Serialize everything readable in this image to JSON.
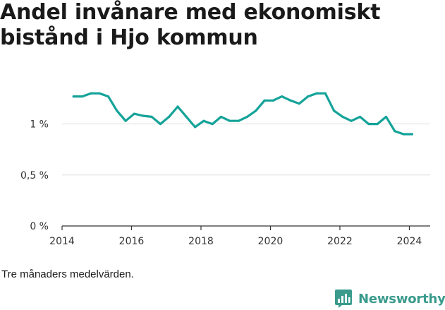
{
  "header": {
    "title": "Andel invånare med ekonomiskt bistånd i Hjo kommun"
  },
  "caption": "Tre månaders medelvärden.",
  "brand": {
    "name": "Newsworthy",
    "color": "#3a9b8d"
  },
  "colors": {
    "line": "#14a399",
    "grid": "#dddddd",
    "axis": "#333333"
  },
  "chart_data": {
    "type": "line",
    "title": "Andel invånare med ekonomiskt bistånd i Hjo kommun",
    "xlabel": "",
    "ylabel": "",
    "xlim": [
      2014,
      2024.6
    ],
    "ylim": [
      0,
      1.35
    ],
    "x_ticks": [
      {
        "value": 2014,
        "label": "2014"
      },
      {
        "value": 2016,
        "label": "2016"
      },
      {
        "value": 2018,
        "label": "2018"
      },
      {
        "value": 2020,
        "label": "2020"
      },
      {
        "value": 2022,
        "label": "2022"
      },
      {
        "value": 2024,
        "label": "2024"
      }
    ],
    "y_ticks": [
      {
        "value": 0,
        "label": "0 %"
      },
      {
        "value": 0.5,
        "label": "0,5 %"
      },
      {
        "value": 1,
        "label": "1 %"
      }
    ],
    "grid": true,
    "legend": "none",
    "series": [
      {
        "values": [
          {
            "x": 2014.33,
            "y": 1.27
          },
          {
            "x": 2014.58,
            "y": 1.27
          },
          {
            "x": 2014.83,
            "y": 1.3
          },
          {
            "x": 2015.08,
            "y": 1.3
          },
          {
            "x": 2015.33,
            "y": 1.27
          },
          {
            "x": 2015.58,
            "y": 1.13
          },
          {
            "x": 2015.83,
            "y": 1.03
          },
          {
            "x": 2016.08,
            "y": 1.1
          },
          {
            "x": 2016.33,
            "y": 1.08
          },
          {
            "x": 2016.58,
            "y": 1.07
          },
          {
            "x": 2016.83,
            "y": 1.0
          },
          {
            "x": 2017.08,
            "y": 1.07
          },
          {
            "x": 2017.33,
            "y": 1.17
          },
          {
            "x": 2017.58,
            "y": 1.07
          },
          {
            "x": 2017.83,
            "y": 0.97
          },
          {
            "x": 2018.08,
            "y": 1.03
          },
          {
            "x": 2018.33,
            "y": 1.0
          },
          {
            "x": 2018.58,
            "y": 1.07
          },
          {
            "x": 2018.83,
            "y": 1.03
          },
          {
            "x": 2019.08,
            "y": 1.03
          },
          {
            "x": 2019.33,
            "y": 1.07
          },
          {
            "x": 2019.58,
            "y": 1.13
          },
          {
            "x": 2019.83,
            "y": 1.23
          },
          {
            "x": 2020.08,
            "y": 1.23
          },
          {
            "x": 2020.33,
            "y": 1.27
          },
          {
            "x": 2020.58,
            "y": 1.23
          },
          {
            "x": 2020.83,
            "y": 1.2
          },
          {
            "x": 2021.08,
            "y": 1.27
          },
          {
            "x": 2021.33,
            "y": 1.3
          },
          {
            "x": 2021.58,
            "y": 1.3
          },
          {
            "x": 2021.83,
            "y": 1.13
          },
          {
            "x": 2022.08,
            "y": 1.07
          },
          {
            "x": 2022.33,
            "y": 1.03
          },
          {
            "x": 2022.58,
            "y": 1.07
          },
          {
            "x": 2022.83,
            "y": 1.0
          },
          {
            "x": 2023.08,
            "y": 1.0
          },
          {
            "x": 2023.33,
            "y": 1.07
          },
          {
            "x": 2023.58,
            "y": 0.93
          },
          {
            "x": 2023.83,
            "y": 0.9
          },
          {
            "x": 2024.08,
            "y": 0.9
          }
        ]
      }
    ]
  }
}
